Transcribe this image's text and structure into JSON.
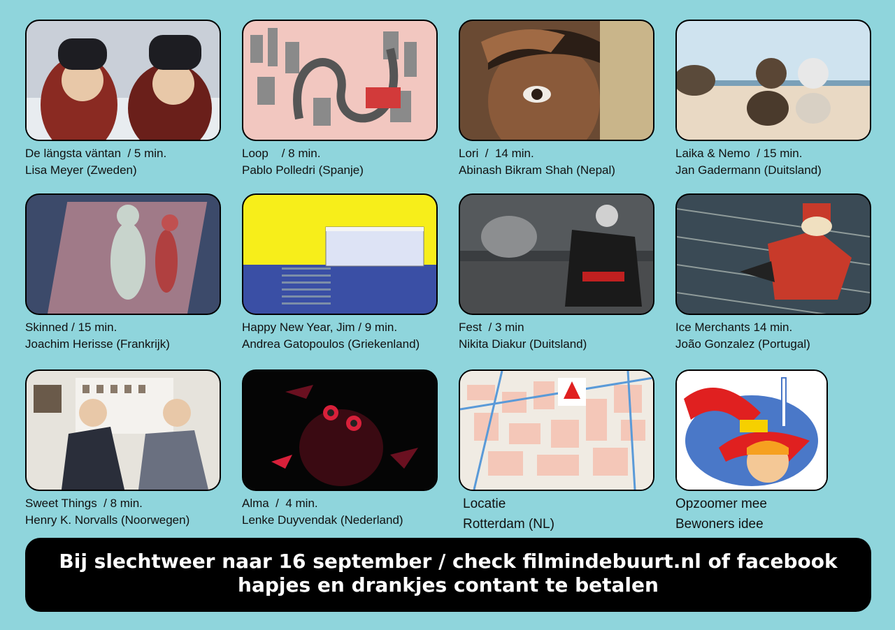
{
  "films": [
    {
      "title": "De längsta väntan  / 5 min.",
      "director": "Lisa Meyer (Zweden)",
      "palette": [
        "#c9cfd8",
        "#2a2a30",
        "#8a2a22"
      ]
    },
    {
      "title": "Loop    / 8 min.",
      "director": "Pablo Polledri (Spanje)",
      "palette": [
        "#f2c7c0",
        "#8a8a8a",
        "#d23a3a"
      ]
    },
    {
      "title": "Lori  /  14 min.",
      "director": "Abinash Bikram Shah (Nepal)",
      "palette": [
        "#6a4a33",
        "#c9b58a",
        "#2b1e16"
      ]
    },
    {
      "title": "Laika & Nemo  / 15 min.",
      "director": "Jan Gadermann (Duitsland)",
      "palette": [
        "#cfe3ef",
        "#e9d9c4",
        "#5a4635"
      ]
    },
    {
      "title": "Skinned / 15 min.",
      "director": "Joachim Herisse (Frankrijk)",
      "palette": [
        "#3c4a6a",
        "#c99a9a",
        "#a03030"
      ]
    },
    {
      "title": "Happy New Year, Jim / 9 min.",
      "director": "Andrea Gatopoulos (Griekenland)",
      "palette": [
        "#f7ee1a",
        "#3a4fa5",
        "#ffffff"
      ]
    },
    {
      "title": "Fest  / 3 min",
      "director": "Nikita Diakur (Duitsland)",
      "palette": [
        "#3a3d40",
        "#8c8e90",
        "#c02020"
      ]
    },
    {
      "title": "Ice Merchants 14 min.",
      "director": "João Gonzalez (Portugal)",
      "palette": [
        "#3a4a55",
        "#c8d2c8",
        "#c83a2a"
      ]
    },
    {
      "title": "Sweet Things  / 8 min.",
      "director": "Henry K. Norvalls (Noorwegen)",
      "palette": [
        "#e6e3dc",
        "#2a2e3a",
        "#c8b29a"
      ]
    },
    {
      "title": "Alma  /  4 min.",
      "director": "Lenke Duyvendak (Nederland)",
      "palette": [
        "#050505",
        "#d8203a",
        "#6a1020"
      ]
    }
  ],
  "location": {
    "line1": "Locatie",
    "line2": "Rotterdam (NL)"
  },
  "opzoomer": {
    "line1": "Opzoomer mee",
    "line2": "Bewoners idee"
  },
  "banner": {
    "line1": "Bij slechtweer naar 16 september  / check filmindebuurt.nl of facebook",
    "line2": "hapjes en drankjes contant te betalen"
  }
}
